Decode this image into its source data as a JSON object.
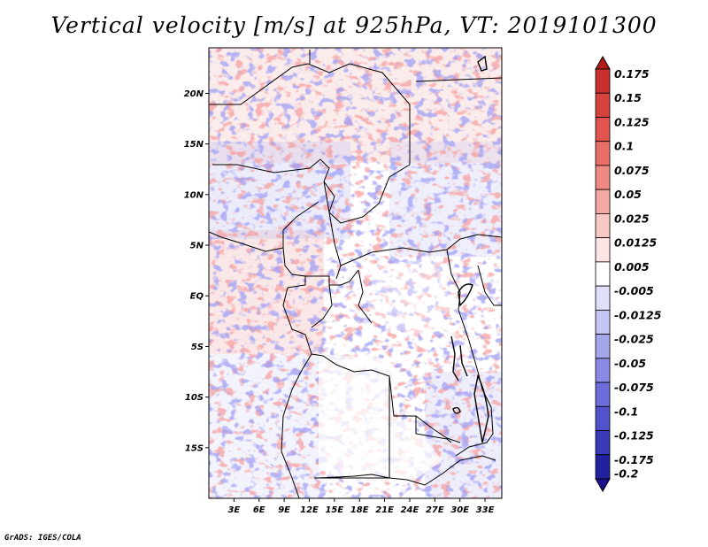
{
  "title": "Vertical velocity [m/s] at 925hPa, VT: 2019101300",
  "credit": "GrADS: IGES/COLA",
  "map": {
    "lon_range": [
      0,
      35
    ],
    "lat_range": [
      -20,
      24.5
    ],
    "lat_ticks": [
      {
        "value": 20,
        "label": "20N"
      },
      {
        "value": 15,
        "label": "15N"
      },
      {
        "value": 10,
        "label": "10N"
      },
      {
        "value": 5,
        "label": "5N"
      },
      {
        "value": 0,
        "label": "EQ"
      },
      {
        "value": -5,
        "label": "5S"
      },
      {
        "value": -10,
        "label": "10S"
      },
      {
        "value": -15,
        "label": "15S"
      }
    ],
    "lon_ticks": [
      {
        "value": 3,
        "label": "3E"
      },
      {
        "value": 6,
        "label": "6E"
      },
      {
        "value": 9,
        "label": "9E"
      },
      {
        "value": 12,
        "label": "12E"
      },
      {
        "value": 15,
        "label": "15E"
      },
      {
        "value": 18,
        "label": "18E"
      },
      {
        "value": 21,
        "label": "21E"
      },
      {
        "value": 24,
        "label": "24E"
      },
      {
        "value": 27,
        "label": "27E"
      },
      {
        "value": 30,
        "label": "30E"
      },
      {
        "value": 33,
        "label": "33E"
      }
    ]
  },
  "colorbar": {
    "labels": [
      "0.175",
      "0.15",
      "0.125",
      "0.1",
      "0.075",
      "0.05",
      "0.025",
      "0.0125",
      "0.005",
      "-0.005",
      "-0.0125",
      "-0.025",
      "-0.05",
      "-0.075",
      "-0.1",
      "-0.125",
      "-0.175",
      "-0.2"
    ],
    "colors": [
      "#b31b1b",
      "#c8302d",
      "#d6423c",
      "#e0534f",
      "#e96e68",
      "#ee8a84",
      "#f3a8a3",
      "#f8c8c4",
      "#fce4e2",
      "#ffffff",
      "#e0e0fa",
      "#c5c5f3",
      "#a6a6ec",
      "#8a8ae4",
      "#6d6dd9",
      "#5252cc",
      "#3a3ab9",
      "#2222a0",
      "#1a0f8f"
    ]
  }
}
